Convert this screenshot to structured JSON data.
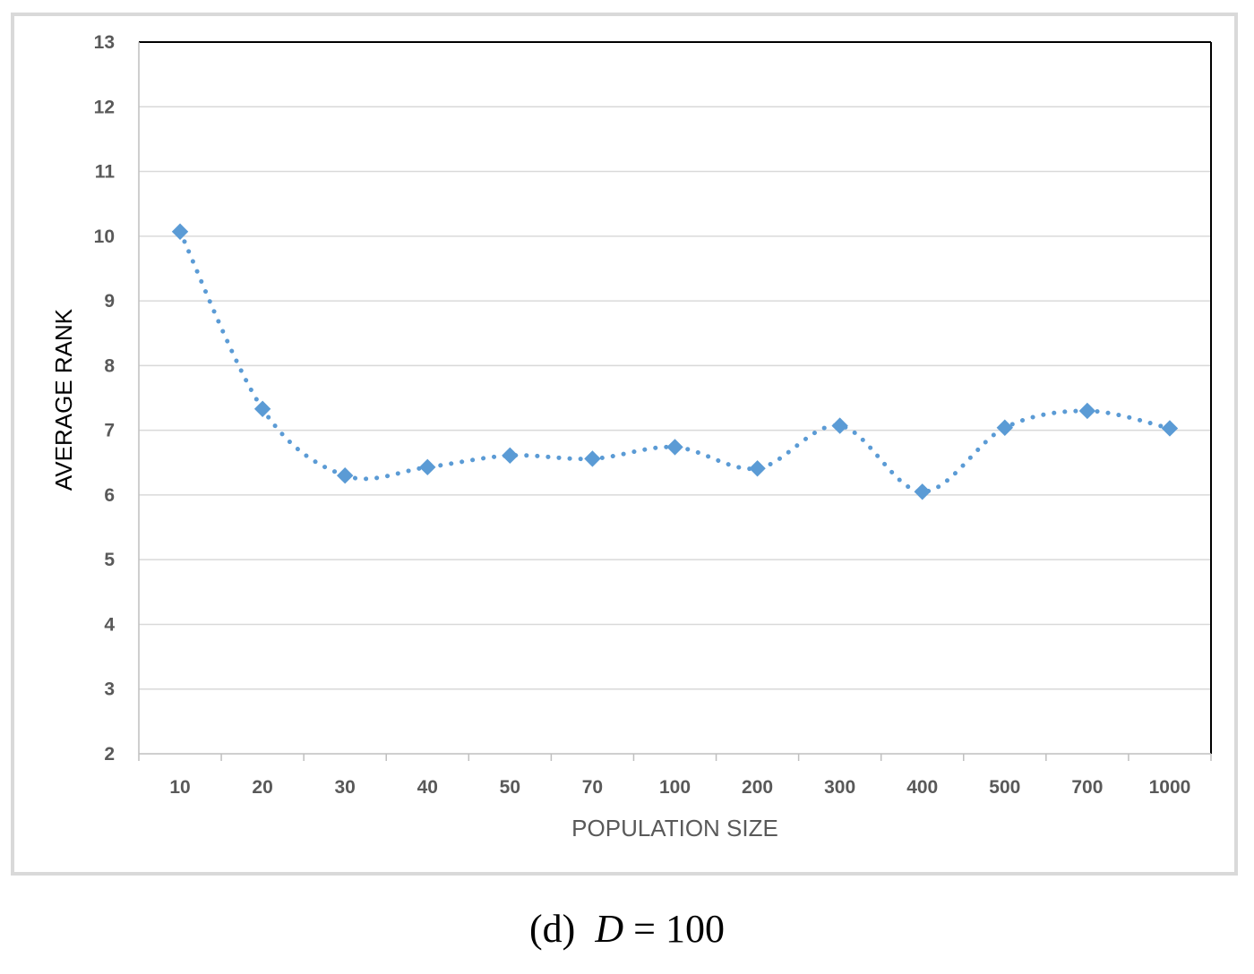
{
  "chart_data": {
    "type": "line",
    "title": "",
    "xlabel": "POPULATION SIZE",
    "ylabel": "AVERAGE RANK",
    "categories": [
      "10",
      "20",
      "30",
      "40",
      "50",
      "70",
      "100",
      "200",
      "300",
      "400",
      "500",
      "700",
      "1000"
    ],
    "series": [
      {
        "values": [
          10.07,
          7.33,
          6.3,
          6.43,
          6.61,
          6.56,
          6.74,
          6.41,
          7.07,
          6.05,
          7.04,
          7.3,
          7.03
        ],
        "color": "#5b9bd5",
        "line_style": "dotted",
        "marker": "diamond"
      }
    ],
    "ylim": [
      2,
      13
    ],
    "yticks": [
      "2",
      "3",
      "4",
      "5",
      "6",
      "7",
      "8",
      "9",
      "10",
      "11",
      "12",
      "13"
    ],
    "grid": true,
    "legend": "none"
  },
  "caption": {
    "prefix": "(d)",
    "variable": "D",
    "equals": "=",
    "value": "100"
  }
}
